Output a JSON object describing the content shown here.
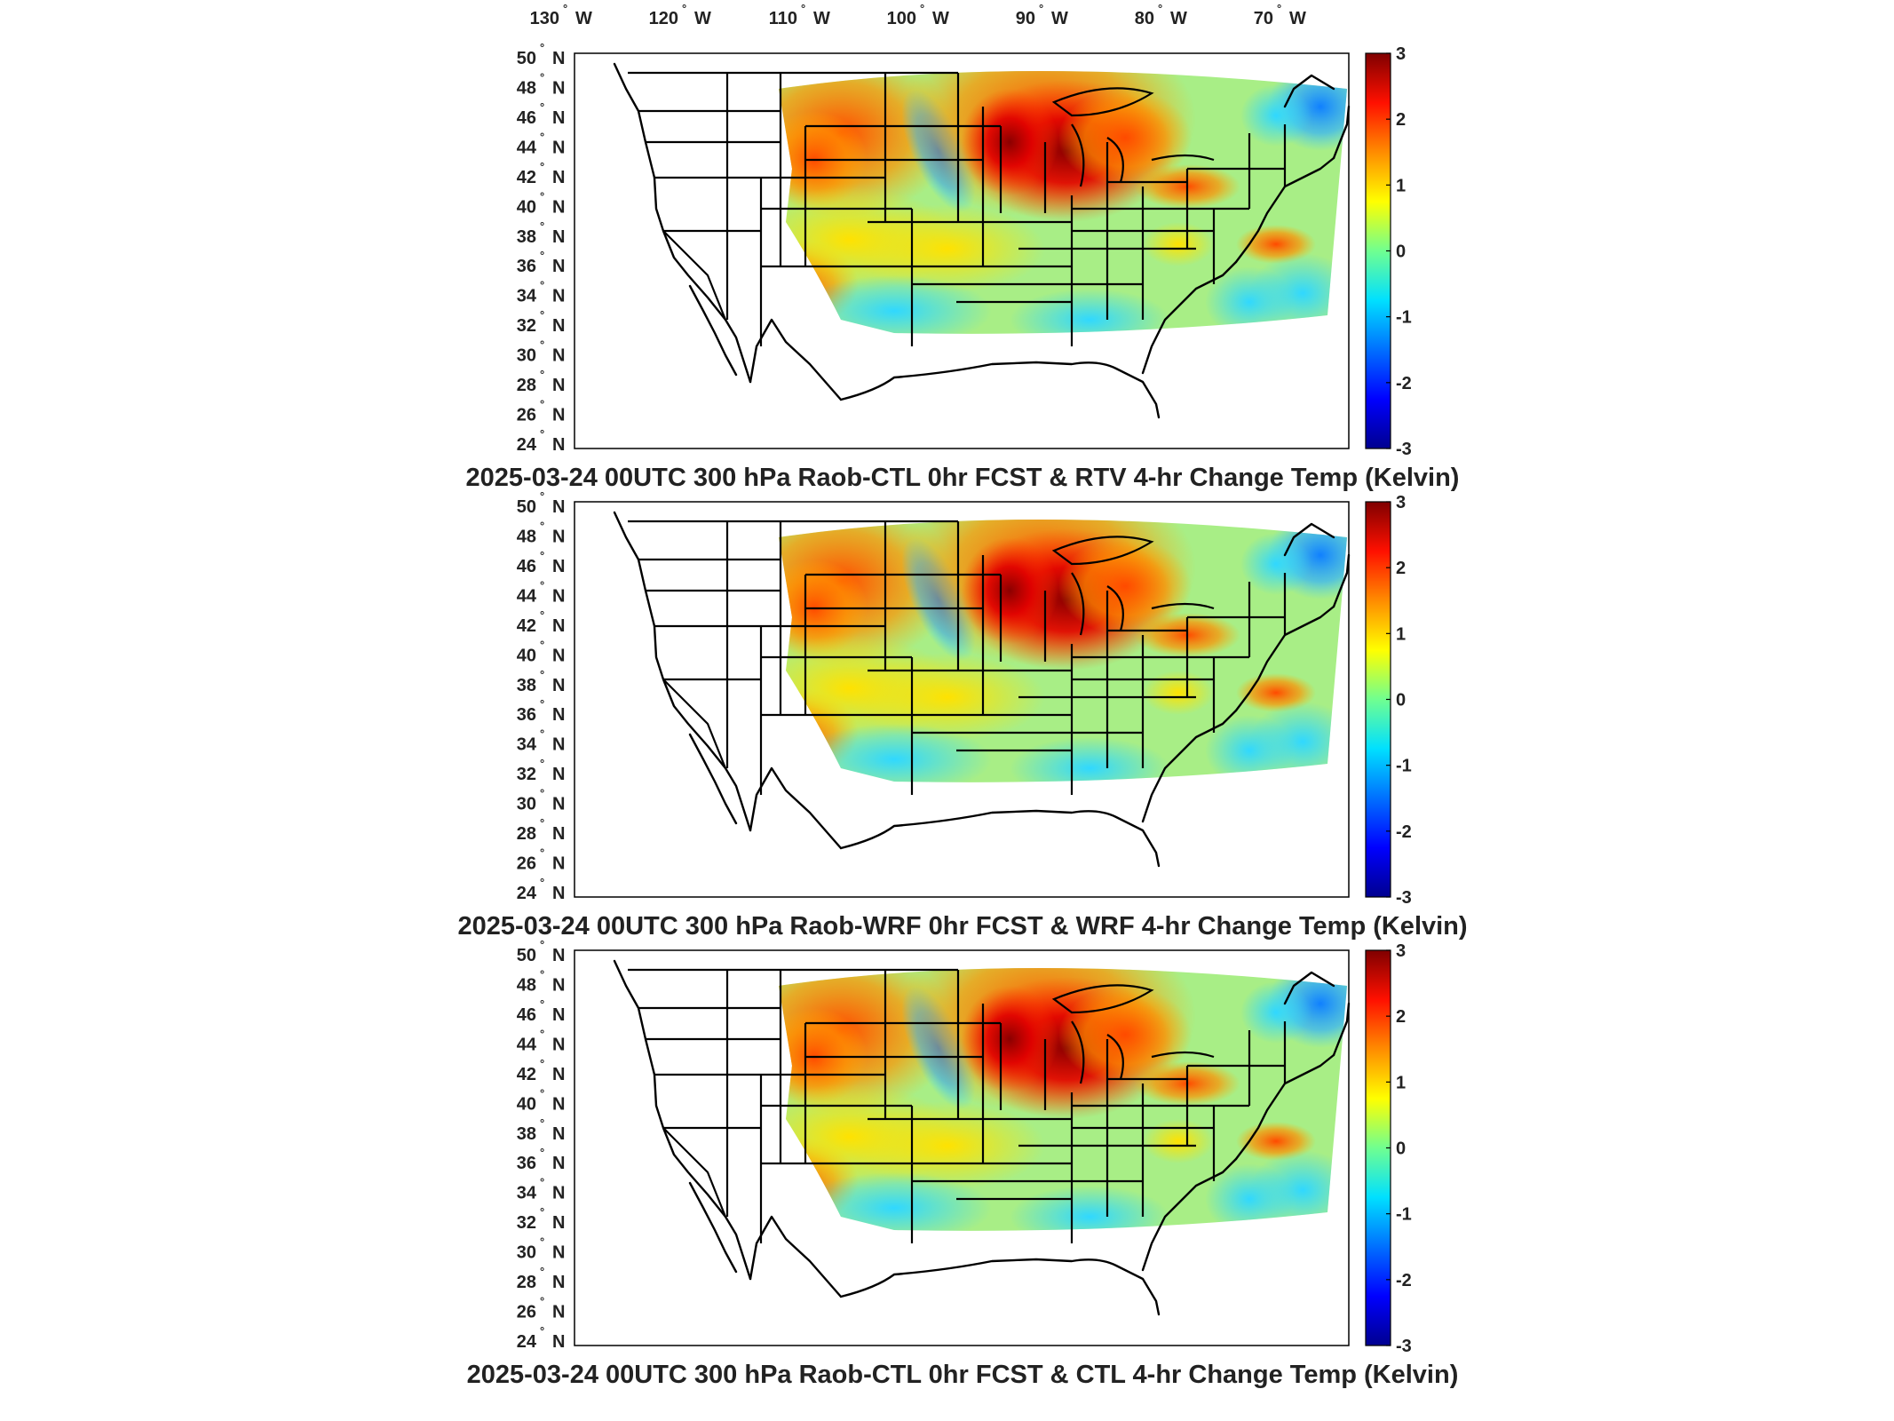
{
  "figure": {
    "lon_ticks": [
      "130",
      "120",
      "110",
      "100",
      "90",
      "80",
      "70"
    ],
    "lon_hemisphere": "W",
    "lat_ticks": [
      "50",
      "48",
      "46",
      "44",
      "42",
      "40",
      "38",
      "36",
      "34",
      "32",
      "30",
      "28",
      "26",
      "24"
    ],
    "lat_hemisphere": "N",
    "degree_symbol": "°",
    "colorbar": {
      "ticks": [
        "3",
        "2",
        "1",
        "0",
        "-1",
        "-2",
        "-3"
      ],
      "range": [
        -3,
        3
      ],
      "colormap": "jet",
      "colors": [
        "#00008f",
        "#0000ff",
        "#0080ff",
        "#00ffff",
        "#80ff80",
        "#ffff00",
        "#ff8000",
        "#ff0000",
        "#800000"
      ]
    }
  },
  "panels": [
    {
      "title": "2025-03-24 00UTC 300 hPa Raob-CTL 0hr FCST & RTV 4-hr Change Temp (Kelvin)"
    },
    {
      "title": "2025-03-24 00UTC 300 hPa Raob-WRF 0hr FCST & WRF 4-hr Change Temp (Kelvin)"
    },
    {
      "title": "2025-03-24 00UTC 300 hPa Raob-CTL 0hr FCST & CTL 4-hr Change Temp (Kelvin)"
    }
  ]
}
